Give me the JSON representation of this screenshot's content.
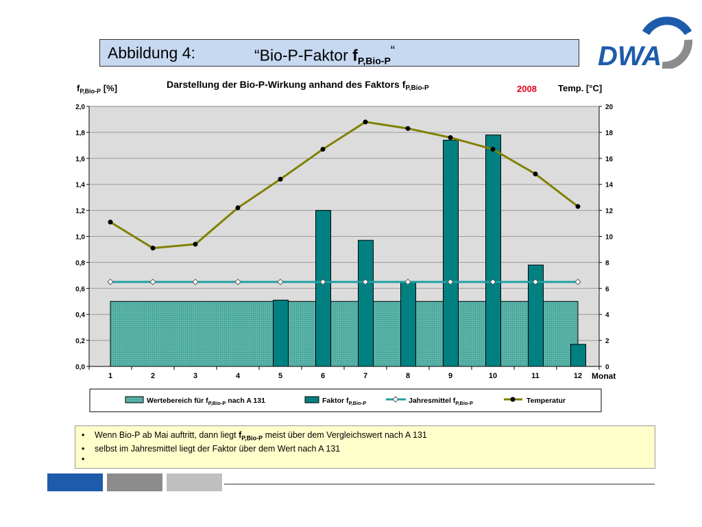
{
  "slide": {
    "figure_label": "Abbildung 4:",
    "figure_title_open": "“Bio-P-Faktor ",
    "figure_title_main": "f",
    "figure_title_sub": "P,Bio-P",
    "figure_title_close": "“",
    "logo_text": "DWA"
  },
  "notes": {
    "items": [
      {
        "pre": "Wenn Bio-P ab Mai auftritt, dann liegt ",
        "bold": "f",
        "bold_sub": "P,Bio-P",
        "post": " meist über dem Vergleichswert nach A 131"
      },
      {
        "pre": "selbst im Jahresmittel liegt der Faktor über dem Wert nach A 131",
        "bold": "",
        "bold_sub": "",
        "post": ""
      },
      {
        "pre": "",
        "bold": "",
        "bold_sub": "",
        "post": ""
      }
    ]
  },
  "colors": {
    "title_bg": "#c6d9f1",
    "plot_bg": "#dcdcdc",
    "band": "#5ab3a8",
    "bar": "#008080",
    "mean_line": "#1f9fa4",
    "temp_line": "#808000",
    "year_red": "#e0001b",
    "logo_blue": "#1e5cab",
    "logo_grey": "#8c8c8c",
    "note_bg": "#ffffcc",
    "footer_blue": "#1e5cab",
    "footer_grey1": "#8c8c8c",
    "footer_grey2": "#bfbfbf"
  },
  "chart_data": {
    "type": "bar",
    "title_main": "Darstellung der Bio-P-Wirkung anhand des Faktors f",
    "title_sub": "P,Bio-P",
    "year": "2008",
    "y_left_label_main": "f",
    "y_left_label_sub": "P,Bio-P",
    "y_left_label_unit": " [%]",
    "y_right_label": "Temp. [°C]",
    "x_label": "Monat",
    "categories": [
      "1",
      "2",
      "3",
      "4",
      "5",
      "6",
      "7",
      "8",
      "9",
      "10",
      "11",
      "12"
    ],
    "y_left_ticks": [
      "0,0",
      "0,2",
      "0,4",
      "0,6",
      "0,8",
      "1,0",
      "1,2",
      "1,4",
      "1,6",
      "1,8",
      "2,0"
    ],
    "y_right_ticks": [
      "0",
      "2",
      "4",
      "6",
      "8",
      "10",
      "12",
      "14",
      "16",
      "18",
      "20"
    ],
    "ylim": [
      0,
      2.0
    ],
    "y2lim": [
      0,
      20
    ],
    "grid": true,
    "legend_position": "bottom",
    "series": [
      {
        "name_main": "Wertebereich für f",
        "name_sub": "P,Bio-P",
        "name_post": "  nach A 131",
        "kind": "area",
        "axis": "left",
        "values": [
          0.5,
          0.5,
          0.5,
          0.5,
          0.5,
          0.5,
          0.5,
          0.5,
          0.5,
          0.5,
          0.5,
          0.5
        ]
      },
      {
        "name_main": "Faktor f",
        "name_sub": "P,Bio-P",
        "name_post": "",
        "kind": "bar",
        "axis": "left",
        "values": [
          null,
          null,
          null,
          null,
          0.51,
          1.2,
          0.97,
          0.65,
          1.74,
          1.78,
          0.78,
          0.17
        ]
      },
      {
        "name_main": "Jahresmittel f",
        "name_sub": "P,Bio-P",
        "name_post": "",
        "kind": "line",
        "axis": "left",
        "values": [
          0.65,
          0.65,
          0.65,
          0.65,
          0.65,
          0.65,
          0.65,
          0.65,
          0.65,
          0.65,
          0.65,
          0.65
        ]
      },
      {
        "name_main": "Temperatur",
        "name_sub": "",
        "name_post": "",
        "kind": "line",
        "axis": "right",
        "values": [
          11.1,
          9.1,
          9.4,
          12.2,
          14.4,
          16.7,
          18.8,
          18.3,
          17.6,
          16.7,
          14.8,
          12.3
        ]
      }
    ]
  }
}
